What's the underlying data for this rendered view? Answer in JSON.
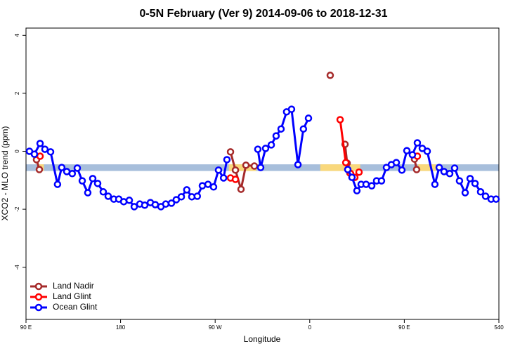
{
  "chart_data": {
    "type": "line",
    "title": "0-5N February (Ver 9)   2014-09-06 to 2018-12-31",
    "x_label": "Longitude",
    "y_label": "XCO2 - MLO trend (ppm)",
    "xlim": [
      90,
      540
    ],
    "ylim": [
      -5.8,
      4.25
    ],
    "xticks": [
      {
        "value": 90,
        "label": "90 E"
      },
      180,
      {
        "value": 270,
        "label": "90 W"
      },
      {
        "value": 360,
        "label": "0"
      },
      {
        "value": 450,
        "label": "90 E"
      },
      540
    ],
    "yticks": [
      -4,
      -2,
      0,
      2,
      4
    ],
    "legend": "bottom-left",
    "surface_band": {
      "ylim": [
        -0.68,
        -0.45
      ],
      "ocean_color": "#a7bedb",
      "land_color": "#f9d87c",
      "land": [
        [
          102,
          107
        ],
        [
          283,
          309
        ],
        [
          370,
          408
        ],
        [
          463,
          480
        ]
      ]
    },
    "series": [
      {
        "name": "Land Nadir",
        "color": "#a52a2a",
        "x": [
          100,
          102.7,
          null,
          284.6,
          289.3,
          294.6,
          299.3,
          307.3,
          null,
          379.5,
          null,
          393.6,
          395.6,
          398.2,
          null,
          459.7,
          461.7
        ],
        "values": [
          -0.29,
          -0.63,
          null,
          -0.02,
          -0.65,
          -1.31,
          -0.48,
          -0.51,
          null,
          2.62,
          null,
          0.24,
          -0.41,
          -0.75,
          null,
          -0.27,
          -0.63
        ]
      },
      {
        "name": "Land Glint",
        "color": "#ff0000",
        "x": [
          103.4,
          null,
          284.6,
          289.3,
          null,
          388.9,
          394.3,
          398.9,
          402.9,
          406.9,
          null,
          462.4
        ],
        "values": [
          -0.17,
          null,
          -0.92,
          -0.97,
          null,
          1.09,
          -0.39,
          -0.77,
          -0.9,
          -0.72,
          null,
          -0.17
        ]
      },
      {
        "name": "Ocean Glint",
        "color": "#0000ff",
        "x": [
          93.3,
          98,
          103.4,
          108,
          113.4,
          120,
          124,
          128.8,
          134,
          138.8,
          143.5,
          148.8,
          153.5,
          158.2,
          163.5,
          168.2,
          173.6,
          178.3,
          183,
          188.3,
          193,
          198.3,
          203,
          208.4,
          213,
          218.4,
          223,
          228.4,
          233,
          237.8,
          243,
          247.8,
          253,
          257.8,
          263.2,
          268.5,
          273.2,
          278,
          281.2,
          null,
          310.6,
          313.3,
          318,
          323.4,
          328,
          332.7,
          338,
          342.7,
          348.8,
          354,
          358.8,
          null,
          396.2,
          400.2,
          404.9,
          408.9,
          413.6,
          419,
          423.6,
          428.3,
          433,
          437.7,
          442.4,
          447.7,
          452.4,
          457.7,
          462.4,
          467.1,
          471.8,
          479.1,
          483.2,
          487.8,
          493.2,
          497.9,
          502.5,
          507.9,
          512.6,
          517.3,
          522.6,
          527.3,
          532.6,
          537.3
        ],
        "values": [
          0.0,
          -0.1,
          0.27,
          0.07,
          -0.02,
          -1.14,
          -0.56,
          -0.7,
          -0.77,
          -0.58,
          -1.02,
          -1.43,
          -0.94,
          -1.11,
          -1.4,
          -1.55,
          -1.65,
          -1.65,
          -1.74,
          -1.69,
          -1.91,
          -1.82,
          -1.86,
          -1.77,
          -1.84,
          -1.91,
          -1.82,
          -1.79,
          -1.67,
          -1.57,
          -1.33,
          -1.57,
          -1.55,
          -1.19,
          -1.14,
          -1.23,
          -0.65,
          -0.92,
          -0.29,
          null,
          0.07,
          -0.56,
          0.1,
          0.22,
          0.53,
          0.77,
          1.36,
          1.45,
          -0.46,
          0.77,
          1.14,
          null,
          -0.63,
          -0.9,
          -1.36,
          -1.14,
          -1.14,
          -1.19,
          -1.02,
          -1.02,
          -0.56,
          -0.46,
          -0.39,
          -0.65,
          0.02,
          -0.12,
          0.29,
          0.1,
          0.0,
          -1.14,
          -0.56,
          -0.7,
          -0.77,
          -0.58,
          -1.02,
          -1.43,
          -0.94,
          -1.11,
          -1.4,
          -1.55,
          -1.65,
          -1.65
        ]
      }
    ]
  }
}
